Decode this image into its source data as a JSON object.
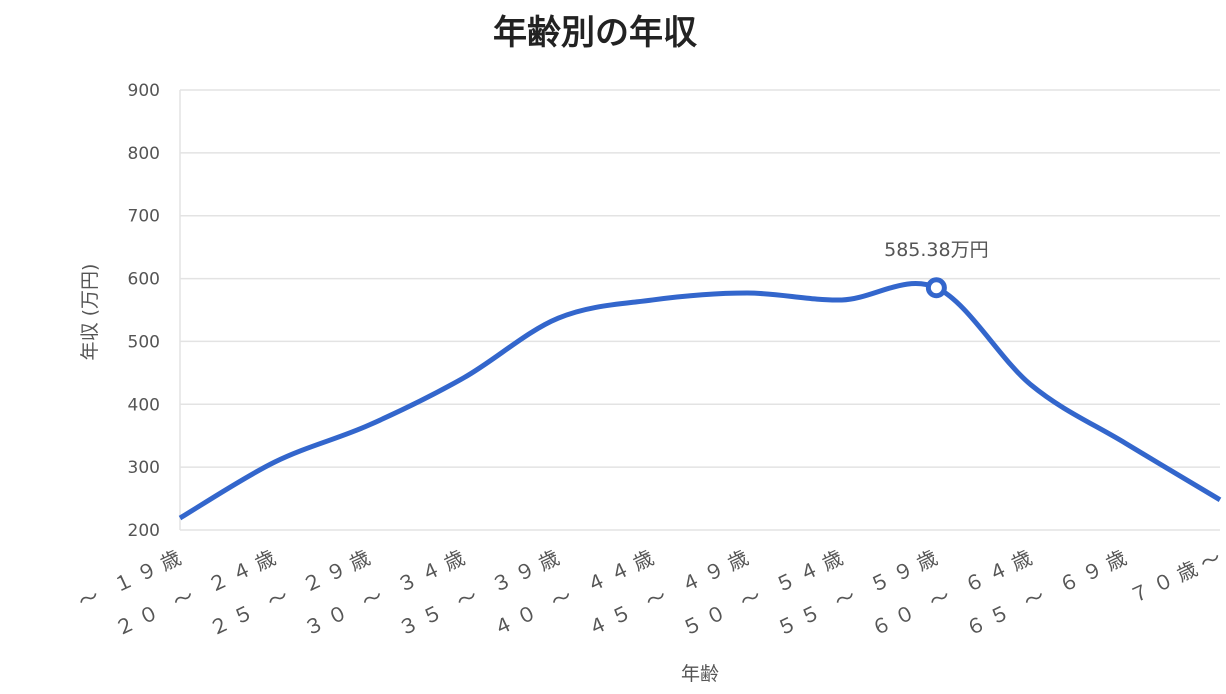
{
  "chart_data": {
    "type": "line",
    "title": "年齢別の年収",
    "x_label": "年齢",
    "y_label": "年収 (万円)",
    "categories": [
      "～ １９歳",
      "２０ ～ ２４歳",
      "２５ ～ ２９歳",
      "３０ ～ ３４歳",
      "３５ ～ ３９歳",
      "４０ ～ ４４歳",
      "４５ ～ ４９歳",
      "５０ ～ ５４歳",
      "５５ ～ ５９歳",
      "６０ ～ ６４歳",
      "６５ ～ ６９歳",
      "７０歳～"
    ],
    "series": [
      {
        "name": "年収",
        "color": "#3366cc",
        "values": [
          219,
          308,
          367,
          442,
          537,
          566,
          577,
          566,
          585.38,
          431,
          338,
          248
        ],
        "value_labels": [
          null,
          null,
          null,
          null,
          null,
          null,
          null,
          null,
          "585.38万円",
          null,
          null,
          null
        ]
      }
    ],
    "ylim": [
      200,
      900
    ],
    "yticks": [
      200,
      300,
      400,
      500,
      600,
      700,
      800,
      900
    ],
    "grid": true
  }
}
